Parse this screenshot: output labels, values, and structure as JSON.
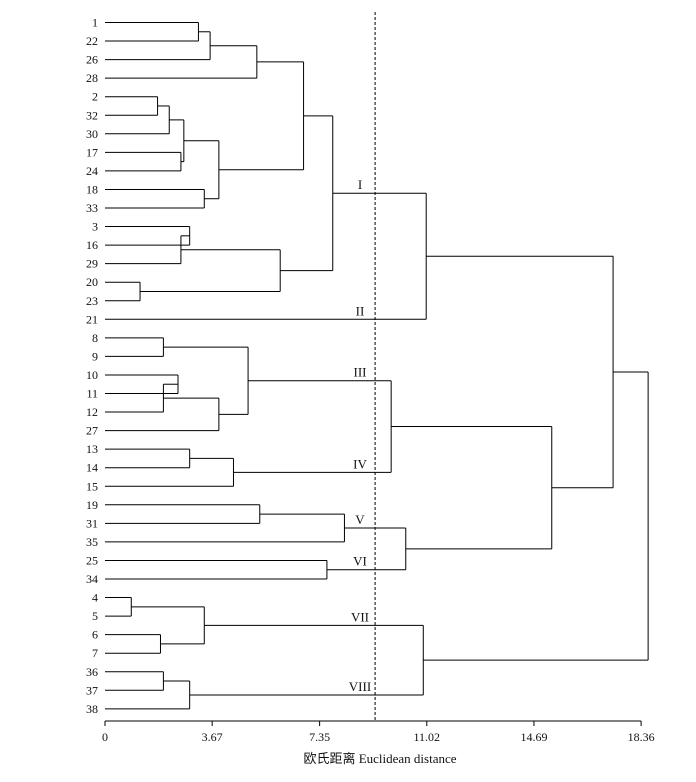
{
  "chart_data": {
    "type": "dendrogram",
    "title": "",
    "xlabel": "欧氏距离 Euclidean distance",
    "ylabel": "",
    "xlim": [
      0,
      18.36
    ],
    "x_ticks": [
      0,
      3.67,
      7.35,
      11.02,
      14.69,
      18.36
    ],
    "x_tick_labels": [
      "0",
      "3.67",
      "7.35",
      "11.02",
      "14.69",
      "18.36"
    ],
    "cut_distance": 9.25,
    "leaf_order": [
      "1",
      "22",
      "26",
      "28",
      "2",
      "32",
      "30",
      "17",
      "24",
      "18",
      "33",
      "3",
      "16",
      "29",
      "20",
      "23",
      "21",
      "8",
      "9",
      "10",
      "11",
      "12",
      "27",
      "13",
      "14",
      "15",
      "19",
      "31",
      "35",
      "25",
      "34",
      "4",
      "5",
      "6",
      "7",
      "36",
      "37",
      "38"
    ],
    "merges": [
      {
        "id": "A1",
        "children": [
          "1",
          "22"
        ],
        "height": 3.2
      },
      {
        "id": "A2",
        "children": [
          "A1",
          "26"
        ],
        "height": 3.6
      },
      {
        "id": "A3",
        "children": [
          "A2",
          "28"
        ],
        "height": 5.2
      },
      {
        "id": "B1",
        "children": [
          "2",
          "32"
        ],
        "height": 1.8
      },
      {
        "id": "B2",
        "children": [
          "B1",
          "30"
        ],
        "height": 2.2
      },
      {
        "id": "B3",
        "children": [
          "17",
          "24"
        ],
        "height": 2.6
      },
      {
        "id": "B4",
        "children": [
          "B2",
          "B3"
        ],
        "height": 2.7
      },
      {
        "id": "B5",
        "children": [
          "18",
          "33"
        ],
        "height": 3.4
      },
      {
        "id": "B6",
        "children": [
          "B4",
          "B5"
        ],
        "height": 3.9
      },
      {
        "id": "C1",
        "children": [
          "A3",
          "B6"
        ],
        "height": 6.8
      },
      {
        "id": "D1",
        "children": [
          "3",
          "16"
        ],
        "height": 2.9
      },
      {
        "id": "D2",
        "children": [
          "D1",
          "29"
        ],
        "height": 2.6
      },
      {
        "id": "D3",
        "children": [
          "20",
          "23"
        ],
        "height": 1.2
      },
      {
        "id": "D4",
        "children": [
          "D2",
          "D3"
        ],
        "height": 6.0
      },
      {
        "id": "E1",
        "children": [
          "C1",
          "D4"
        ],
        "height": 7.8
      },
      {
        "id": "F1",
        "children": [
          "E1",
          "21"
        ],
        "height": 11.0
      },
      {
        "id": "G1",
        "children": [
          "8",
          "9"
        ],
        "height": 2.0
      },
      {
        "id": "G2",
        "children": [
          "10",
          "11"
        ],
        "height": 2.5
      },
      {
        "id": "G3",
        "children": [
          "G2",
          "12"
        ],
        "height": 2.0
      },
      {
        "id": "G4",
        "children": [
          "G3",
          "27"
        ],
        "height": 3.9
      },
      {
        "id": "G5",
        "children": [
          "G1",
          "G4"
        ],
        "height": 4.9
      },
      {
        "id": "H1",
        "children": [
          "13",
          "14"
        ],
        "height": 2.9
      },
      {
        "id": "H2",
        "children": [
          "H1",
          "15"
        ],
        "height": 4.4
      },
      {
        "id": "I1",
        "children": [
          "G5",
          "H2"
        ],
        "height": 9.8
      },
      {
        "id": "J1",
        "children": [
          "19",
          "31"
        ],
        "height": 5.3
      },
      {
        "id": "J2",
        "children": [
          "J1",
          "35"
        ],
        "height": 8.2
      },
      {
        "id": "K1",
        "children": [
          "25",
          "34"
        ],
        "height": 7.6
      },
      {
        "id": "L1",
        "children": [
          "J2",
          "K1"
        ],
        "height": 10.3
      },
      {
        "id": "M1",
        "children": [
          "I1",
          "L1"
        ],
        "height": 15.3
      },
      {
        "id": "N1",
        "children": [
          "F1",
          "M1"
        ],
        "height": 17.4
      },
      {
        "id": "O1",
        "children": [
          "4",
          "5"
        ],
        "height": 0.9
      },
      {
        "id": "O2",
        "children": [
          "6",
          "7"
        ],
        "height": 1.9
      },
      {
        "id": "O3",
        "children": [
          "O1",
          "O2"
        ],
        "height": 3.4
      },
      {
        "id": "P1",
        "children": [
          "36",
          "37"
        ],
        "height": 2.0
      },
      {
        "id": "P2",
        "children": [
          "P1",
          "38"
        ],
        "height": 2.9
      },
      {
        "id": "Q1",
        "children": [
          "O3",
          "P2"
        ],
        "height": 10.9
      },
      {
        "id": "R1",
        "children": [
          "N1",
          "Q1"
        ],
        "height": 18.6
      }
    ],
    "cluster_labels": [
      {
        "label": "I",
        "node": "E1"
      },
      {
        "label": "II",
        "node": "21"
      },
      {
        "label": "III",
        "node": "G5"
      },
      {
        "label": "IV",
        "node": "H2"
      },
      {
        "label": "V",
        "node": "J2"
      },
      {
        "label": "VI",
        "node": "K1"
      },
      {
        "label": "VII",
        "node": "O3"
      },
      {
        "label": "VIII",
        "node": "P2"
      }
    ]
  }
}
